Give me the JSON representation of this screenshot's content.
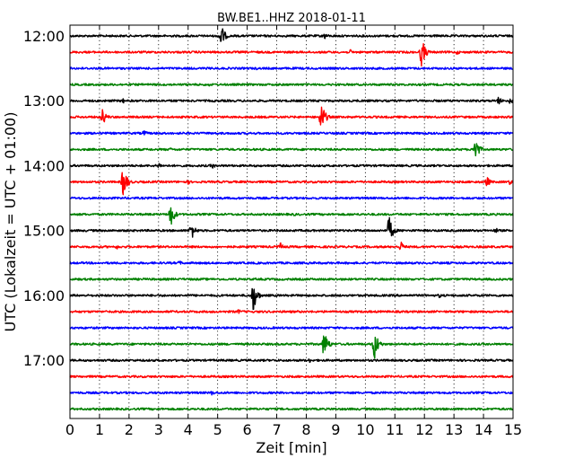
{
  "chart_data": {
    "type": "line",
    "subtype": "dayplot",
    "title": "BW.BE1..HHZ 2018-01-11",
    "xlabel": "Zeit  [min]",
    "ylabel": "UTC (Lokalzeit = UTC + 01:00)",
    "xlim": [
      0,
      15
    ],
    "x_ticks": [
      "0",
      "1",
      "2",
      "3",
      "4",
      "5",
      "6",
      "7",
      "8",
      "9",
      "10",
      "11",
      "12",
      "13",
      "14",
      "15"
    ],
    "y_tick_labels": [
      "12:00",
      "13:00",
      "14:00",
      "15:00",
      "16:00",
      "17:00"
    ],
    "grid": "dotted vertical at each minute",
    "trace_colors": [
      "#000000",
      "#ff0000",
      "#0000ff",
      "#008000"
    ],
    "traces": [
      {
        "start": "12:00",
        "events": [
          [
            5.1,
            0.8
          ],
          [
            8.6,
            0.25
          ],
          [
            15.0,
            0.1
          ]
        ]
      },
      {
        "start": "12:15",
        "events": [
          [
            11.9,
            0.9
          ],
          [
            9.5,
            0.15
          ],
          [
            13.1,
            0.15
          ]
        ]
      },
      {
        "start": "12:30",
        "events": [
          [
            1.3,
            0.1
          ],
          [
            4.7,
            0.1
          ],
          [
            6.3,
            0.1
          ]
        ]
      },
      {
        "start": "12:45",
        "events": [
          [
            4.7,
            0.1
          ]
        ]
      },
      {
        "start": "13:00",
        "events": [
          [
            1.8,
            0.15
          ],
          [
            3.5,
            0.1
          ],
          [
            14.5,
            0.25
          ],
          [
            14.9,
            0.2
          ]
        ]
      },
      {
        "start": "13:15",
        "events": [
          [
            1.1,
            0.5
          ],
          [
            8.5,
            1.0
          ]
        ]
      },
      {
        "start": "13:30",
        "events": [
          [
            2.5,
            0.2
          ],
          [
            5.3,
            0.1
          ]
        ]
      },
      {
        "start": "13:45",
        "events": [
          [
            3.4,
            0.1
          ],
          [
            13.7,
            0.9
          ]
        ]
      },
      {
        "start": "14:00",
        "events": [
          [
            3.0,
            0.2
          ],
          [
            4.8,
            0.2
          ]
        ]
      },
      {
        "start": "14:15",
        "events": [
          [
            1.8,
            1.0
          ],
          [
            4.0,
            0.15
          ],
          [
            14.1,
            0.35
          ],
          [
            14.9,
            0.2
          ]
        ]
      },
      {
        "start": "14:30",
        "events": []
      },
      {
        "start": "14:45",
        "events": [
          [
            3.4,
            0.8
          ],
          [
            7.6,
            0.1
          ]
        ]
      },
      {
        "start": "15:00",
        "events": [
          [
            4.1,
            0.6
          ],
          [
            10.8,
            0.9
          ],
          [
            14.4,
            0.2
          ]
        ]
      },
      {
        "start": "15:15",
        "events": [
          [
            1.6,
            0.15
          ],
          [
            7.1,
            0.3
          ],
          [
            11.2,
            0.35
          ]
        ]
      },
      {
        "start": "15:30",
        "events": [
          [
            3.7,
            0.15
          ]
        ]
      },
      {
        "start": "15:45",
        "events": [
          [
            9.0,
            0.1
          ]
        ]
      },
      {
        "start": "16:00",
        "events": [
          [
            6.2,
            1.0
          ],
          [
            12.5,
            0.15
          ]
        ]
      },
      {
        "start": "16:15",
        "events": [
          [
            5.7,
            0.15
          ]
        ]
      },
      {
        "start": "16:30",
        "events": []
      },
      {
        "start": "16:45",
        "events": [
          [
            8.6,
            0.9
          ],
          [
            10.3,
            1.0
          ]
        ]
      },
      {
        "start": "17:00",
        "events": [
          [
            8.1,
            0.15
          ]
        ]
      },
      {
        "start": "17:15",
        "events": []
      },
      {
        "start": "17:30",
        "events": [
          [
            4.8,
            0.15
          ]
        ]
      },
      {
        "start": "17:45",
        "events": []
      }
    ]
  }
}
